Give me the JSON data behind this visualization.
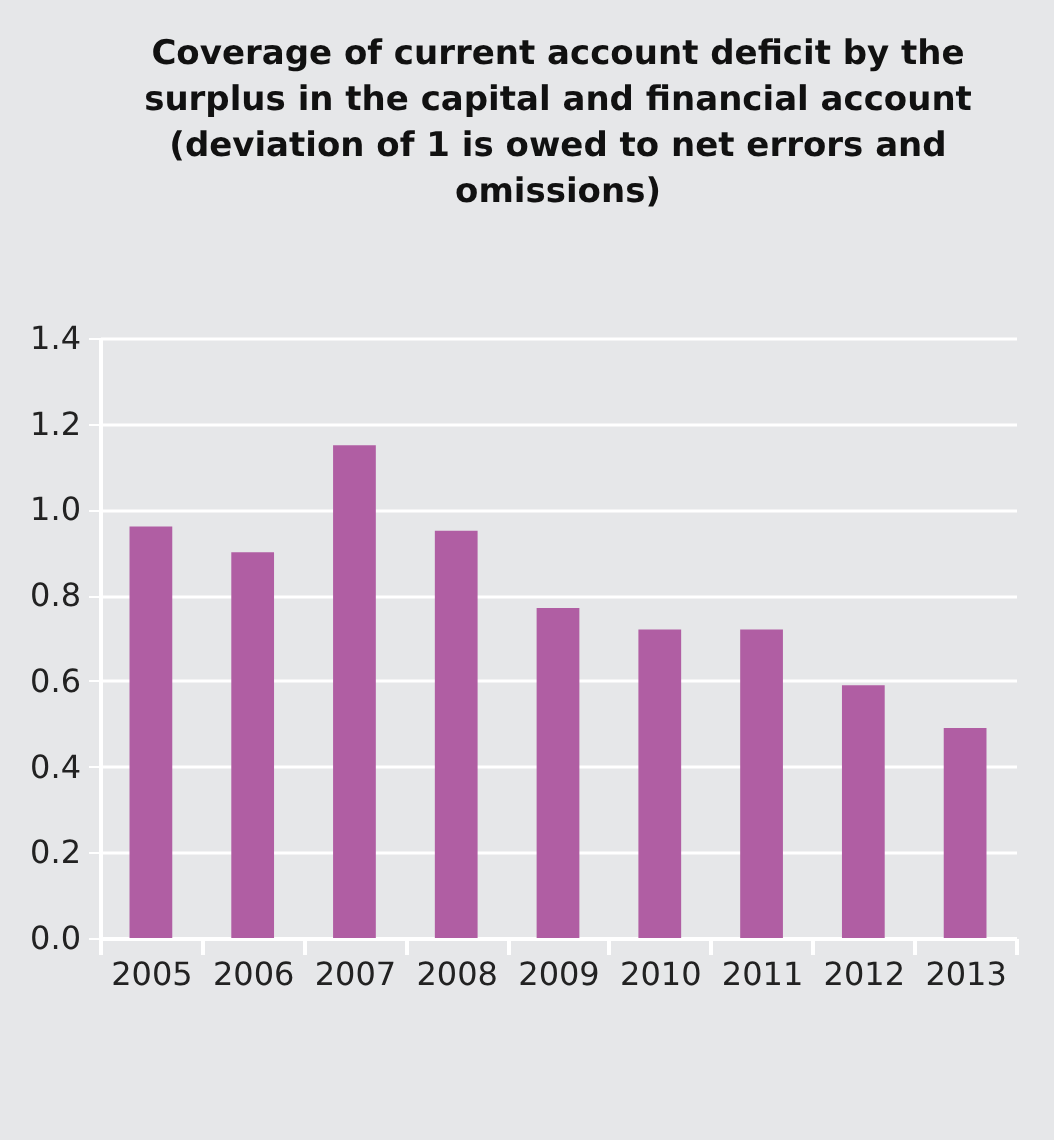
{
  "chart_data": {
    "type": "bar",
    "title": "Coverage of current account deficit by the surplus in the capital and financial account (deviation of 1 is owed to net errors and omissions)",
    "categories": [
      "2005",
      "2006",
      "2007",
      "2008",
      "2009",
      "2010",
      "2011",
      "2012",
      "2013"
    ],
    "values": [
      0.96,
      0.9,
      1.15,
      0.95,
      0.77,
      0.72,
      0.72,
      0.59,
      0.49
    ],
    "color": "#b05ea3",
    "ylim": [
      0,
      1.4
    ],
    "yticks": [
      {
        "value": 0,
        "label": "0.0"
      },
      {
        "value": 0.2,
        "label": "0.2"
      },
      {
        "value": 0.4,
        "label": "0.4"
      },
      {
        "value": 0.6,
        "label": "0.6"
      },
      {
        "value": 0.8,
        "label": "0.8"
      },
      {
        "value": 1.0,
        "label": "1.0"
      },
      {
        "value": 1.2,
        "label": "1.2"
      },
      {
        "value": 1.4,
        "label": "1.4"
      }
    ],
    "grid": "y"
  }
}
